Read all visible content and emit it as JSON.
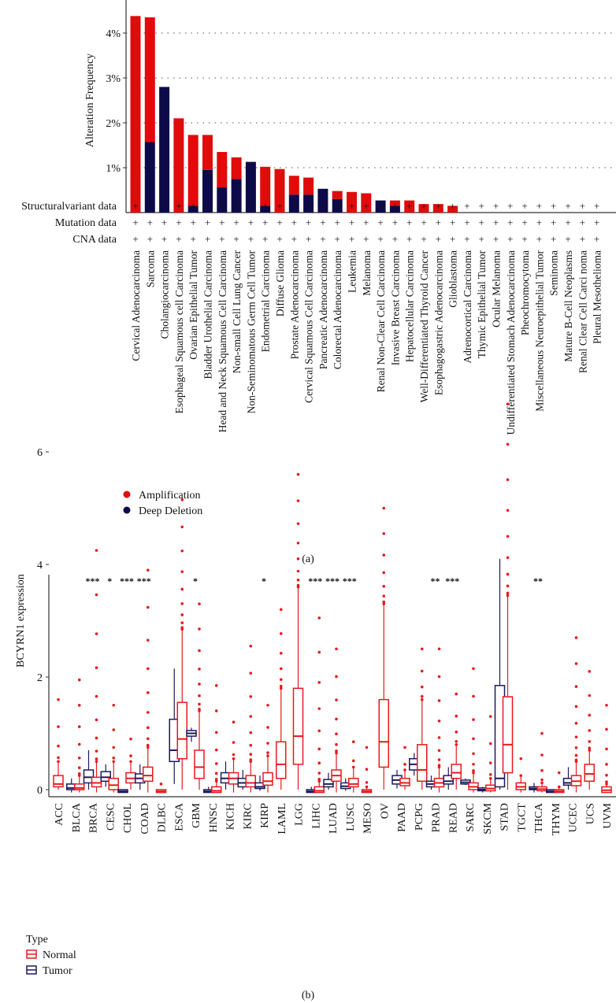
{
  "chart_data": [
    {
      "type": "bar",
      "stacked": true,
      "panel_label": "(a)",
      "ylabel": "Alteration Frequency",
      "yticks": [
        "1%",
        "2%",
        "3%",
        "4%"
      ],
      "ytick_values": [
        1,
        2,
        3,
        4
      ],
      "ylim": [
        0,
        4.7
      ],
      "grid": "horizontal dotted",
      "colors": {
        "Amplification": "#e00b0b",
        "Deep Deletion": "#0d0a4a"
      },
      "legend": {
        "placement": "bottom-left",
        "entries": [
          "Amplification",
          "Deep Deletion"
        ]
      },
      "row_labels": [
        "Structuralvariant data",
        "Mutation data",
        "CNA data"
      ],
      "row_mark": "+",
      "categories": [
        "Cervical Adenocarcinoma",
        "Sarcoma",
        "Cholangiocarcinoma",
        "Esophageal Squamous cell Carcinoma",
        "Ovarian Epithelial Tumor",
        "Bladder Urothelial Carcinoma",
        "Head and Neck Squamous Cell Carcinoma",
        "Non-small Cell Lung Cancer",
        "Non-Seminomatous Germ Cell Tumor",
        "Endometrial Carcinoma",
        "Diffuse Glioma",
        "Prostate Adenocarcinoma",
        "Cervical Squamous Cell Carcinoma",
        "Pancreatic Adenocarcinoma",
        "Colorectal Adenocarcinoma",
        "Leukemia",
        "Melanoma",
        "Renal Non-Clear Cell Carcinoma",
        "Invasive Breast Carcinoma",
        "Hepatocellular Carcinoma",
        "Well-Differentiated Thyroid Cancer",
        "Esophagogastric Adenocarcinoma",
        "Glioblastoma",
        "Adrenocortical Carcinoma",
        "Thymic Epithelial Tumor",
        "Ocular Melanoma",
        "Undifferentiated Stomach Adenocarcinoma",
        "Pheochromocytoma",
        "Miscellaneous Neuroepithelial Tumor",
        "Seminoma",
        "Mature B-Cell Neoplasms",
        "Renal Clear Cell Carci noma",
        "Pleural Mesothelioma"
      ],
      "series": [
        {
          "name": "Deep Deletion",
          "values": [
            0,
            1.57,
            2.8,
            0,
            0.15,
            0.95,
            0.56,
            0.75,
            1.13,
            0.15,
            0,
            0.4,
            0.4,
            0.53,
            0.3,
            0,
            0,
            0.27,
            0.15,
            0,
            0,
            0,
            0,
            0,
            0,
            0,
            0,
            0,
            0,
            0,
            0,
            0,
            0
          ]
        },
        {
          "name": "Amplification",
          "values": [
            4.38,
            2.78,
            0,
            2.1,
            1.58,
            0.78,
            0.79,
            0.48,
            0,
            0.87,
            0.97,
            0.42,
            0.38,
            0,
            0.18,
            0.46,
            0.43,
            0,
            0.12,
            0.27,
            0.19,
            0.19,
            0.15,
            0,
            0,
            0,
            0,
            0,
            0,
            0,
            0,
            0,
            0
          ]
        }
      ]
    },
    {
      "type": "box",
      "panel_label": "(b)",
      "ylabel": "BCYRN1 expression",
      "yticks": [
        "0",
        "2",
        "4",
        "6"
      ],
      "ytick_values": [
        0,
        2,
        4,
        6
      ],
      "ylim": [
        -0.3,
        7.5
      ],
      "legend": {
        "placement": "bottom-left",
        "title": "Type",
        "entries": [
          "Normal",
          "Tumor"
        ]
      },
      "colors": {
        "Normal": "#e8191c",
        "Tumor": "#1c1a5c"
      },
      "box_format": "[whisker_low, q1, median, q3, whisker_high]",
      "groups": [
        {
          "name": "ACC",
          "sig": "",
          "tumor": null,
          "normal": [
            0,
            0.05,
            0.1,
            0.25,
            0.5
          ],
          "max": 1.6
        },
        {
          "name": "BLCA",
          "sig": "",
          "tumor": [
            -0.05,
            0,
            0.03,
            0.1,
            0.2
          ],
          "normal": [
            -0.05,
            0,
            0.03,
            0.1,
            0.25
          ],
          "max": 1.95
        },
        {
          "name": "BRCA",
          "sig": "***",
          "tumor": [
            0,
            0.12,
            0.22,
            0.35,
            0.7
          ],
          "normal": [
            -0.05,
            0.05,
            0.12,
            0.22,
            0.5
          ],
          "max": 4.25
        },
        {
          "name": "CESC",
          "sig": "*",
          "tumor": [
            0.05,
            0.15,
            0.22,
            0.32,
            0.45
          ],
          "normal": [
            -0.05,
            0,
            0.08,
            0.2,
            0.5
          ],
          "max": 1.5
        },
        {
          "name": "CHOL",
          "sig": "***",
          "tumor": [
            -0.05,
            -0.05,
            -0.03,
            0,
            0
          ],
          "normal": [
            0,
            0.12,
            0.2,
            0.3,
            0.5
          ],
          "max": 0.9
        },
        {
          "name": "COAD",
          "sig": "***",
          "tumor": [
            0,
            0.12,
            0.2,
            0.28,
            0.45
          ],
          "normal": [
            -0.05,
            0.15,
            0.25,
            0.4,
            0.75
          ],
          "max": 3.9
        },
        {
          "name": "DLBC",
          "sig": "",
          "tumor": null,
          "normal": [
            -0.05,
            -0.05,
            -0.03,
            0,
            0
          ],
          "max": 0.1
        },
        {
          "name": "ESCA",
          "sig": "",
          "tumor": [
            0.1,
            0.5,
            0.7,
            1.25,
            2.15
          ],
          "normal": [
            0,
            0.55,
            0.9,
            1.55,
            2.85
          ],
          "max": 5.15
        },
        {
          "name": "GBM",
          "sig": "*",
          "tumor": [
            0.85,
            0.95,
            1.0,
            1.05,
            1.1
          ],
          "normal": [
            0,
            0.2,
            0.4,
            0.7,
            1.4
          ],
          "max": 3.3
        },
        {
          "name": "HNSC",
          "sig": "",
          "tumor": [
            -0.05,
            -0.05,
            -0.03,
            0,
            0.05
          ],
          "normal": [
            -0.05,
            -0.05,
            -0.02,
            0.05,
            0.15
          ],
          "max": 1.85
        },
        {
          "name": "KICH",
          "sig": "",
          "tumor": [
            0,
            0.12,
            0.2,
            0.3,
            0.5
          ],
          "normal": [
            -0.05,
            0.1,
            0.2,
            0.3,
            0.55
          ],
          "max": 1.2
        },
        {
          "name": "KIRC",
          "sig": "",
          "tumor": [
            0,
            0.05,
            0.12,
            0.2,
            0.35
          ],
          "normal": [
            -0.05,
            0.05,
            0.12,
            0.25,
            0.5
          ],
          "max": 2.55
        },
        {
          "name": "KIRP",
          "sig": "*",
          "tumor": [
            -0.02,
            0.02,
            0.05,
            0.12,
            0.25
          ],
          "normal": [
            -0.05,
            0.08,
            0.15,
            0.3,
            0.6
          ],
          "max": 1.5
        },
        {
          "name": "LAML",
          "sig": "",
          "tumor": null,
          "normal": [
            0,
            0.2,
            0.45,
            0.85,
            1.8
          ],
          "max": 3.2
        },
        {
          "name": "LGG",
          "sig": "",
          "tumor": null,
          "normal": [
            0,
            0.45,
            0.95,
            1.8,
            3.6
          ],
          "max": 5.6
        },
        {
          "name": "LIHC",
          "sig": "***",
          "tumor": [
            -0.05,
            -0.05,
            -0.03,
            0,
            0.05
          ],
          "normal": [
            -0.05,
            -0.05,
            -0.02,
            0.05,
            0.15
          ],
          "max": 3.05
        },
        {
          "name": "LUAD",
          "sig": "***",
          "tumor": [
            0,
            0.05,
            0.1,
            0.18,
            0.3
          ],
          "normal": [
            -0.05,
            0.15,
            0.25,
            0.35,
            0.65
          ],
          "max": 2.5
        },
        {
          "name": "LUSC",
          "sig": "***",
          "tumor": [
            -0.02,
            0.02,
            0.06,
            0.12,
            0.2
          ],
          "normal": [
            -0.05,
            0.05,
            0.1,
            0.2,
            0.4
          ],
          "max": 0.85
        },
        {
          "name": "MESO",
          "sig": "",
          "tumor": null,
          "normal": [
            -0.05,
            -0.05,
            -0.03,
            0,
            0.05
          ],
          "max": 0.75
        },
        {
          "name": "OV",
          "sig": "",
          "tumor": null,
          "normal": [
            0,
            0.4,
            0.85,
            1.6,
            3.3
          ],
          "max": 5.0
        },
        {
          "name": "PAAD",
          "sig": "",
          "tumor": [
            0.02,
            0.1,
            0.17,
            0.25,
            0.35
          ],
          "normal": [
            0,
            0.07,
            0.12,
            0.2,
            0.35
          ],
          "max": 0.75
        },
        {
          "name": "PCPG",
          "sig": "",
          "tumor": [
            0.25,
            0.35,
            0.45,
            0.55,
            0.65
          ],
          "normal": [
            0,
            0.15,
            0.35,
            0.8,
            1.6
          ],
          "max": 2.5
        },
        {
          "name": "PRAD",
          "sig": "**",
          "tumor": [
            0,
            0.05,
            0.1,
            0.15,
            0.25
          ],
          "normal": [
            -0.05,
            0.05,
            0.12,
            0.2,
            0.4
          ],
          "max": 2.5
        },
        {
          "name": "READ",
          "sig": "***",
          "tumor": [
            0,
            0.1,
            0.15,
            0.25,
            0.4
          ],
          "normal": [
            0,
            0.2,
            0.3,
            0.45,
            0.8
          ],
          "max": 1.7
        },
        {
          "name": "SARC",
          "sig": "",
          "tumor": [
            0.08,
            0.1,
            0.13,
            0.17,
            0.2
          ],
          "normal": [
            -0.05,
            0,
            0.05,
            0.12,
            0.3
          ],
          "max": 2.15
        },
        {
          "name": "SKCM",
          "sig": "",
          "tumor": [
            -0.05,
            -0.02,
            0,
            0.03,
            0.05
          ],
          "normal": [
            -0.05,
            -0.02,
            0.02,
            0.08,
            0.2
          ],
          "max": 1.3
        },
        {
          "name": "STAD",
          "sig": "",
          "tumor": [
            0,
            0.05,
            0.2,
            1.85,
            4.1
          ],
          "normal": [
            0,
            0.3,
            0.8,
            1.65,
            3.45
          ],
          "max": 6.85
        },
        {
          "name": "TGCT",
          "sig": "",
          "tumor": null,
          "normal": [
            -0.05,
            0,
            0.05,
            0.12,
            0.25
          ],
          "max": 0.55
        },
        {
          "name": "THCA",
          "sig": "**",
          "tumor": [
            -0.05,
            0,
            0.02,
            0.05,
            0.12
          ],
          "normal": [
            -0.05,
            -0.02,
            0.01,
            0.05,
            0.12
          ],
          "max": 1.0
        },
        {
          "name": "THYM",
          "sig": "",
          "tumor": [
            -0.05,
            -0.05,
            -0.03,
            0,
            0
          ],
          "normal": [
            -0.05,
            -0.05,
            -0.03,
            0,
            0.05
          ],
          "max": 0.3
        },
        {
          "name": "UCEC",
          "sig": "",
          "tumor": [
            0,
            0.08,
            0.12,
            0.2,
            0.4
          ],
          "normal": [
            -0.05,
            0.07,
            0.15,
            0.25,
            0.5
          ],
          "max": 2.7
        },
        {
          "name": "UCS",
          "sig": "",
          "tumor": null,
          "normal": [
            0,
            0.15,
            0.28,
            0.45,
            0.7
          ],
          "max": 2.1
        },
        {
          "name": "UVM",
          "sig": "",
          "tumor": null,
          "normal": [
            -0.05,
            -0.05,
            -0.01,
            0.05,
            0.1
          ],
          "max": 1.5
        }
      ]
    }
  ]
}
